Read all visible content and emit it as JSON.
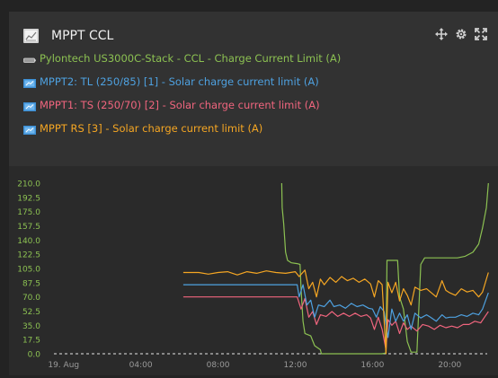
{
  "widget": {
    "title": "MPPT CCL",
    "title_icon": "chart-icon",
    "tools": [
      "move-icon",
      "gear-icon",
      "expand-icon"
    ]
  },
  "legend": [
    {
      "label": "Pylontech US3000C-Stack - CCL - Charge Current Limit (A)",
      "color": "#8cc152",
      "icon": "battery-icon"
    },
    {
      "label": "MPPT2: TL (250/85) [1] - Solar charge current limit (A)",
      "color": "#4ea1e0",
      "icon": "solar-charger-icon"
    },
    {
      "label": "MPPT1: TS (250/70) [2] - Solar charge current limit (A)",
      "color": "#f0657e",
      "icon": "solar-charger-icon"
    },
    {
      "label": "MPPT RS [3] - Solar charge current limit (A)",
      "color": "#f5a623",
      "icon": "solar-charger-icon"
    }
  ],
  "chart_data": {
    "type": "line",
    "title": "MPPT CCL",
    "xlabel": "",
    "ylabel": "",
    "x_unit": "hours",
    "xlim": [
      -0.5,
      22.5
    ],
    "ylim": [
      0,
      210
    ],
    "y_ticks": [
      "0.0",
      "17.5",
      "35.0",
      "52.5",
      "70.0",
      "87.5",
      "105.0",
      "122.5",
      "140.0",
      "157.5",
      "175.0",
      "192.5",
      "210.0"
    ],
    "x_ticks": [
      {
        "x": 0,
        "label": "19. Aug"
      },
      {
        "x": 4,
        "label": "04:00"
      },
      {
        "x": 8,
        "label": "08:00"
      },
      {
        "x": 12,
        "label": "12:00"
      },
      {
        "x": 16,
        "label": "16:00"
      },
      {
        "x": 20,
        "label": "20:00"
      }
    ],
    "grid": false,
    "series": [
      {
        "name": "Pylontech US3000C-Stack - CCL - Charge Current Limit (A)",
        "color": "#8cc152",
        "points": [
          [
            11.3,
            210
          ],
          [
            11.32,
            180
          ],
          [
            11.4,
            160
          ],
          [
            11.5,
            125
          ],
          [
            11.6,
            115
          ],
          [
            11.8,
            112
          ],
          [
            12.1,
            111
          ],
          [
            12.25,
            110
          ],
          [
            12.3,
            80
          ],
          [
            12.4,
            40
          ],
          [
            12.5,
            25
          ],
          [
            12.8,
            22
          ],
          [
            13.0,
            10
          ],
          [
            13.3,
            5
          ],
          [
            13.35,
            0
          ],
          [
            14.0,
            0
          ],
          [
            15.0,
            0
          ],
          [
            16.0,
            0
          ],
          [
            16.5,
            0
          ],
          [
            16.7,
            1
          ],
          [
            16.75,
            115
          ],
          [
            17.0,
            115
          ],
          [
            17.3,
            115
          ],
          [
            17.4,
            70
          ],
          [
            17.6,
            55
          ],
          [
            17.8,
            15
          ],
          [
            18.0,
            2
          ],
          [
            18.3,
            2
          ],
          [
            18.5,
            110
          ],
          [
            18.7,
            118
          ],
          [
            19.0,
            118
          ],
          [
            19.5,
            118
          ],
          [
            20.0,
            118
          ],
          [
            20.4,
            118
          ],
          [
            20.8,
            120
          ],
          [
            21.2,
            125
          ],
          [
            21.5,
            135
          ],
          [
            21.7,
            155
          ],
          [
            21.9,
            180
          ],
          [
            22.0,
            210
          ]
        ]
      },
      {
        "name": "MPPT2: TL (250/85) [1] - Solar charge current limit (A)",
        "color": "#4ea1e0",
        "points": [
          [
            6.2,
            85
          ],
          [
            7.0,
            85
          ],
          [
            8.0,
            85
          ],
          [
            9.0,
            85
          ],
          [
            10.0,
            85
          ],
          [
            11.0,
            85
          ],
          [
            12.1,
            85
          ],
          [
            12.2,
            70
          ],
          [
            12.4,
            85
          ],
          [
            12.6,
            60
          ],
          [
            12.8,
            66
          ],
          [
            13.0,
            45
          ],
          [
            13.2,
            60
          ],
          [
            13.5,
            58
          ],
          [
            13.8,
            66
          ],
          [
            14.0,
            58
          ],
          [
            14.3,
            60
          ],
          [
            14.6,
            56
          ],
          [
            14.9,
            62
          ],
          [
            15.2,
            58
          ],
          [
            15.5,
            60
          ],
          [
            15.8,
            56
          ],
          [
            16.0,
            55
          ],
          [
            16.2,
            45
          ],
          [
            16.4,
            58
          ],
          [
            16.6,
            52
          ],
          [
            16.8,
            20
          ],
          [
            17.0,
            55
          ],
          [
            17.2,
            40
          ],
          [
            17.4,
            50
          ],
          [
            17.6,
            40
          ],
          [
            17.8,
            48
          ],
          [
            18.0,
            30
          ],
          [
            18.2,
            50
          ],
          [
            18.5,
            44
          ],
          [
            18.8,
            48
          ],
          [
            19.0,
            45
          ],
          [
            19.3,
            40
          ],
          [
            19.6,
            48
          ],
          [
            19.8,
            44
          ],
          [
            20.0,
            45
          ],
          [
            20.3,
            45
          ],
          [
            20.6,
            48
          ],
          [
            20.9,
            46
          ],
          [
            21.2,
            50
          ],
          [
            21.5,
            48
          ],
          [
            21.7,
            55
          ],
          [
            22.0,
            75
          ]
        ]
      },
      {
        "name": "MPPT1: TS (250/70) [2] - Solar charge current limit (A)",
        "color": "#f0657e",
        "points": [
          [
            6.2,
            70
          ],
          [
            7.0,
            70
          ],
          [
            8.0,
            70
          ],
          [
            9.0,
            70
          ],
          [
            10.0,
            70
          ],
          [
            11.0,
            70
          ],
          [
            12.1,
            70
          ],
          [
            12.3,
            55
          ],
          [
            12.5,
            68
          ],
          [
            12.7,
            45
          ],
          [
            12.9,
            52
          ],
          [
            13.1,
            36
          ],
          [
            13.3,
            48
          ],
          [
            13.6,
            46
          ],
          [
            13.9,
            52
          ],
          [
            14.2,
            46
          ],
          [
            14.5,
            50
          ],
          [
            14.8,
            46
          ],
          [
            15.1,
            50
          ],
          [
            15.4,
            46
          ],
          [
            15.7,
            48
          ],
          [
            15.9,
            44
          ],
          [
            16.1,
            30
          ],
          [
            16.3,
            45
          ],
          [
            16.5,
            30
          ],
          [
            16.7,
            5
          ],
          [
            16.8,
            42
          ],
          [
            17.0,
            35
          ],
          [
            17.2,
            40
          ],
          [
            17.4,
            25
          ],
          [
            17.6,
            38
          ],
          [
            17.8,
            30
          ],
          [
            18.0,
            34
          ],
          [
            18.3,
            28
          ],
          [
            18.6,
            36
          ],
          [
            18.9,
            34
          ],
          [
            19.2,
            30
          ],
          [
            19.5,
            35
          ],
          [
            19.8,
            32
          ],
          [
            20.1,
            34
          ],
          [
            20.4,
            32
          ],
          [
            20.7,
            36
          ],
          [
            21.0,
            36
          ],
          [
            21.3,
            40
          ],
          [
            21.6,
            38
          ],
          [
            21.8,
            45
          ],
          [
            22.0,
            52
          ]
        ]
      },
      {
        "name": "MPPT RS [3] - Solar charge current limit (A)",
        "color": "#f5a623",
        "points": [
          [
            6.2,
            100
          ],
          [
            7.0,
            100
          ],
          [
            7.5,
            98
          ],
          [
            8.0,
            100
          ],
          [
            8.5,
            101
          ],
          [
            9.0,
            97
          ],
          [
            9.5,
            101
          ],
          [
            10.0,
            99
          ],
          [
            10.5,
            102
          ],
          [
            11.0,
            100
          ],
          [
            11.5,
            99
          ],
          [
            12.0,
            101
          ],
          [
            12.2,
            95
          ],
          [
            12.5,
            103
          ],
          [
            12.7,
            80
          ],
          [
            12.9,
            88
          ],
          [
            13.1,
            70
          ],
          [
            13.3,
            92
          ],
          [
            13.5,
            85
          ],
          [
            13.8,
            94
          ],
          [
            14.1,
            88
          ],
          [
            14.4,
            95
          ],
          [
            14.7,
            90
          ],
          [
            15.0,
            93
          ],
          [
            15.3,
            88
          ],
          [
            15.6,
            92
          ],
          [
            15.9,
            86
          ],
          [
            16.1,
            70
          ],
          [
            16.3,
            90
          ],
          [
            16.5,
            85
          ],
          [
            16.7,
            0
          ],
          [
            16.8,
            88
          ],
          [
            17.0,
            75
          ],
          [
            17.2,
            88
          ],
          [
            17.4,
            65
          ],
          [
            17.6,
            80
          ],
          [
            17.8,
            72
          ],
          [
            18.0,
            60
          ],
          [
            18.2,
            82
          ],
          [
            18.5,
            78
          ],
          [
            18.8,
            80
          ],
          [
            19.0,
            76
          ],
          [
            19.3,
            70
          ],
          [
            19.6,
            90
          ],
          [
            19.8,
            78
          ],
          [
            20.0,
            75
          ],
          [
            20.3,
            72
          ],
          [
            20.6,
            80
          ],
          [
            20.9,
            76
          ],
          [
            21.2,
            78
          ],
          [
            21.5,
            70
          ],
          [
            21.7,
            76
          ],
          [
            22.0,
            100
          ]
        ]
      }
    ]
  }
}
